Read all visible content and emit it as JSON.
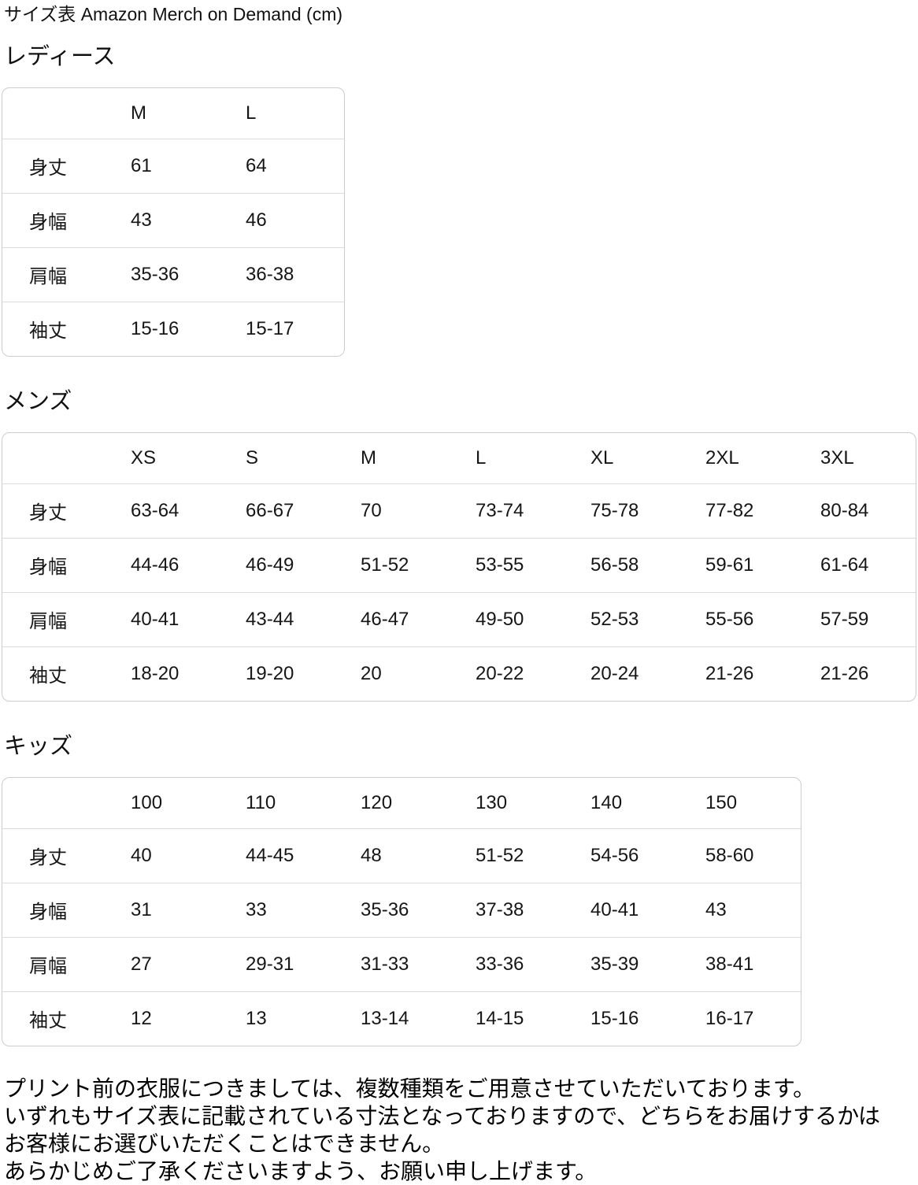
{
  "page": {
    "title": "サイズ表 Amazon Merch on Demand (cm)"
  },
  "sections": [
    {
      "heading": "レディース",
      "columns": [
        "M",
        "L"
      ],
      "rows": [
        {
          "label": "身丈",
          "values": [
            "61",
            "64"
          ]
        },
        {
          "label": "身幅",
          "values": [
            "43",
            "46"
          ]
        },
        {
          "label": "肩幅",
          "values": [
            "35-36",
            "36-38"
          ]
        },
        {
          "label": "袖丈",
          "values": [
            "15-16",
            "15-17"
          ]
        }
      ]
    },
    {
      "heading": "メンズ",
      "columns": [
        "XS",
        "S",
        "M",
        "L",
        "XL",
        "2XL",
        "3XL"
      ],
      "rows": [
        {
          "label": "身丈",
          "values": [
            "63-64",
            "66-67",
            "70",
            "73-74",
            "75-78",
            "77-82",
            "80-84"
          ]
        },
        {
          "label": "身幅",
          "values": [
            "44-46",
            "46-49",
            "51-52",
            "53-55",
            "56-58",
            "59-61",
            "61-64"
          ]
        },
        {
          "label": "肩幅",
          "values": [
            "40-41",
            "43-44",
            "46-47",
            "49-50",
            "52-53",
            "55-56",
            "57-59"
          ]
        },
        {
          "label": "袖丈",
          "values": [
            "18-20",
            "19-20",
            "20",
            "20-22",
            "20-24",
            "21-26",
            "21-26"
          ]
        }
      ]
    },
    {
      "heading": "キッズ",
      "columns": [
        "100",
        "110",
        "120",
        "130",
        "140",
        "150"
      ],
      "rows": [
        {
          "label": "身丈",
          "values": [
            "40",
            "44-45",
            "48",
            "51-52",
            "54-56",
            "58-60"
          ]
        },
        {
          "label": "身幅",
          "values": [
            "31",
            "33",
            "35-36",
            "37-38",
            "40-41",
            "43"
          ]
        },
        {
          "label": "肩幅",
          "values": [
            "27",
            "29-31",
            "31-33",
            "33-36",
            "35-39",
            "38-41"
          ]
        },
        {
          "label": "袖丈",
          "values": [
            "12",
            "13",
            "13-14",
            "14-15",
            "15-16",
            "16-17"
          ]
        }
      ]
    }
  ],
  "footer": {
    "lines": [
      "プリント前の衣服につきましては、複数種類をご用意させていただいております。",
      "いずれもサイズ表に記載されている寸法となっておりますので、どちらをお届けするかは",
      "お客様にお選びいただくことはできません。",
      "あらかじめご了承くださいますよう、お願い申し上げます。"
    ]
  }
}
